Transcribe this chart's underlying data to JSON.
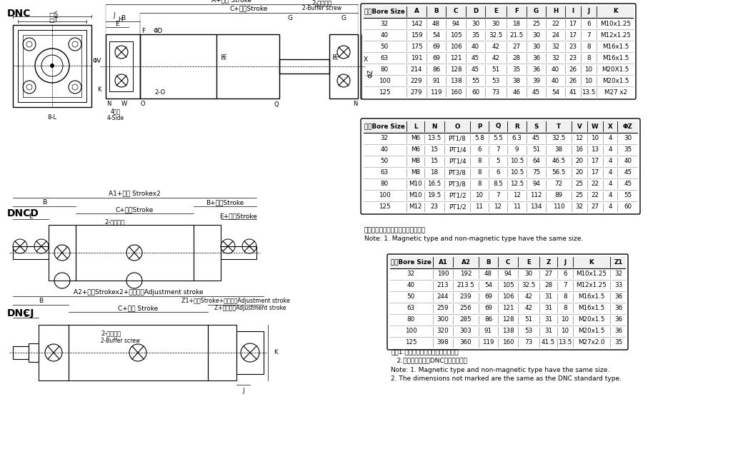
{
  "bg_color": "#ffffff",
  "table1_header": [
    "缸径Bore Size",
    "A",
    "B",
    "C",
    "D",
    "E",
    "F",
    "G",
    "H",
    "I",
    "J",
    "K"
  ],
  "table1_rows": [
    [
      "32",
      "142",
      "48",
      "94",
      "30",
      "30",
      "18",
      "25",
      "22",
      "17",
      "6",
      "M10x1.25"
    ],
    [
      "40",
      "159",
      "54",
      "105",
      "35",
      "32.5",
      "21.5",
      "30",
      "24",
      "17",
      "7",
      "M12x1.25"
    ],
    [
      "50",
      "175",
      "69",
      "106",
      "40",
      "42",
      "27",
      "30",
      "32",
      "23",
      "8",
      "M16x1.5"
    ],
    [
      "63",
      "191",
      "69",
      "121",
      "45",
      "42",
      "28",
      "36",
      "32",
      "23",
      "8",
      "M16x1.5"
    ],
    [
      "80",
      "214",
      "86",
      "128",
      "45",
      "51",
      "35",
      "36",
      "40",
      "26",
      "10",
      "M20X1.5"
    ],
    [
      "100",
      "229",
      "91",
      "138",
      "55",
      "53",
      "38",
      "39",
      "40",
      "26",
      "10",
      "M20x1.5"
    ],
    [
      "125",
      "279",
      "119",
      "160",
      "60",
      "73",
      "46",
      "45",
      "54",
      "41",
      "13.5",
      "M27 x2"
    ]
  ],
  "table2_header": [
    "缸径Bore Size",
    "L",
    "N",
    "O",
    "P",
    "Q",
    "R",
    "S",
    "T",
    "V",
    "W",
    "X",
    "ΦZ"
  ],
  "table2_rows": [
    [
      "32",
      "M6",
      "13.5",
      "PT1/8",
      "5.8",
      "5.5",
      "6.3",
      "45",
      "32.5",
      "12",
      "10",
      "4",
      "30"
    ],
    [
      "40",
      "M6",
      "15",
      "PT1/4",
      "6",
      "7",
      "9",
      "51",
      "38",
      "16",
      "13",
      "4",
      "35"
    ],
    [
      "50",
      "M8",
      "15",
      "PT1/4",
      "8",
      "5",
      "10.5",
      "64",
      "46.5",
      "20",
      "17",
      "4",
      "40"
    ],
    [
      "63",
      "M8",
      "18",
      "PT3/8",
      "8",
      "6",
      "10.5",
      "75",
      "56.5",
      "20",
      "17",
      "4",
      "45"
    ],
    [
      "80",
      "M10",
      "16.5",
      "PT3/8",
      "8",
      "8.5",
      "12.5",
      "94",
      "72",
      "25",
      "22",
      "4",
      "45"
    ],
    [
      "100",
      "M10",
      "19.5",
      "PT1/2",
      "10",
      "7",
      "12",
      "112",
      "89",
      "25",
      "22",
      "4",
      "55"
    ],
    [
      "125",
      "M12",
      "23",
      "PT1/2",
      "11",
      "12",
      "11",
      "134",
      "110",
      "32",
      "27",
      "4",
      "60"
    ]
  ],
  "note1_zh": "注：附磁型与不附磁型之尺寸相同。",
  "note1_en": "Note: 1. Magnetic type and non-magnetic type have the same size.",
  "table3_header": [
    "缸径Bore Size",
    "A1",
    "A2",
    "B",
    "C",
    "E",
    "Z",
    "J",
    "K",
    "Z1"
  ],
  "table3_rows": [
    [
      "32",
      "190",
      "192",
      "48",
      "94",
      "30",
      "27",
      "6",
      "M10x1.25",
      "32"
    ],
    [
      "40",
      "213",
      "213.5",
      "54",
      "105",
      "32.5",
      "28",
      "7",
      "M12x1.25",
      "33"
    ],
    [
      "50",
      "244",
      "239",
      "69",
      "106",
      "42",
      "31",
      "8",
      "M16x1.5",
      "36"
    ],
    [
      "63",
      "259",
      "256",
      "69",
      "121",
      "42",
      "31",
      "8",
      "M16x1.5",
      "36"
    ],
    [
      "80",
      "300",
      "285",
      "86",
      "128",
      "51",
      "31",
      "10",
      "M20x1.5",
      "36"
    ],
    [
      "100",
      "320",
      "303",
      "91",
      "138",
      "53",
      "31",
      "10",
      "M20x1.5",
      "36"
    ],
    [
      "125",
      "398",
      "360",
      "119",
      "160",
      "73",
      "41.5",
      "13.5",
      "M27x2.0",
      "35"
    ]
  ],
  "note2_zh1": "注：1.附磁型与不附磁型之尺寸相同。",
  "note2_zh2": "   2.未标注之尺寸与DNC标准型相同。",
  "note2_en1": "Note: 1. Magnetic type and non-magnetic type have the same size.",
  "note2_en2": "2. The dimensions not marked are the same as the DNC standard type.",
  "section_dnc": "DNC",
  "section_dncd": "DNCD",
  "section_dncj": "DNCJ"
}
